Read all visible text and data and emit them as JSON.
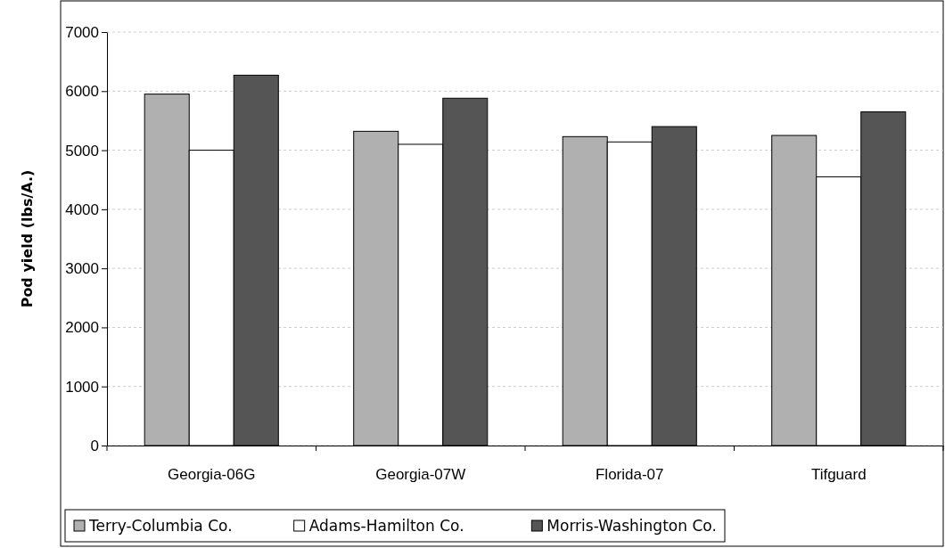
{
  "chart_data": {
    "type": "bar",
    "ylabel": "Pod yield (lbs/A.)",
    "categories": [
      "Georgia-06G",
      "Georgia-07W",
      "Florida-07",
      "Tifguard"
    ],
    "series": [
      {
        "name": "Terry-Columbia Co.",
        "color": "#b0b0b0",
        "values": [
          5950,
          5320,
          5230,
          5250
        ]
      },
      {
        "name": "Adams-Hamilton Co.",
        "color": "#ffffff",
        "values": [
          5000,
          5100,
          5140,
          4550
        ]
      },
      {
        "name": "Morris-Washington Co.",
        "color": "#555555",
        "values": [
          6270,
          5880,
          5400,
          5650
        ]
      }
    ],
    "ylim": [
      0,
      7000
    ],
    "yticks": [
      0,
      1000,
      2000,
      3000,
      4000,
      5000,
      6000,
      7000
    ],
    "grid": "y",
    "legend": "bottom"
  }
}
